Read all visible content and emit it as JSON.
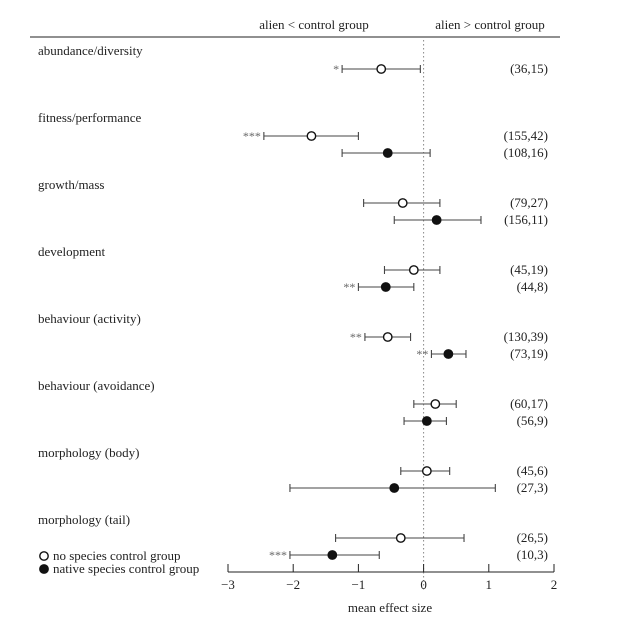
{
  "chart_data": {
    "type": "forest",
    "header_left": "alien < control group",
    "header_right": "alien > control group",
    "xlabel": "mean effect size",
    "xlim": [
      -3,
      2
    ],
    "xticks": [
      -3,
      -2,
      -1,
      0,
      1,
      2
    ],
    "xtick_labels": [
      "−3",
      "−2",
      "−1",
      "0",
      "1",
      "2"
    ],
    "reference_line": 0,
    "legend": [
      {
        "marker": "open",
        "label": "no species control group"
      },
      {
        "marker": "filled",
        "label": "native species control group"
      }
    ],
    "groups": [
      {
        "label": "abundance/diversity",
        "rows": [
          {
            "marker": "open",
            "mean": -0.65,
            "lo": -1.25,
            "hi": -0.05,
            "n": "(36,15)",
            "sig": "*"
          }
        ]
      },
      {
        "label": "fitness/performance",
        "rows": [
          {
            "marker": "open",
            "mean": -1.72,
            "lo": -2.45,
            "hi": -1.0,
            "n": "(155,42)",
            "sig": "***"
          },
          {
            "marker": "filled",
            "mean": -0.55,
            "lo": -1.25,
            "hi": 0.1,
            "n": "(108,16)",
            "sig": ""
          }
        ]
      },
      {
        "label": "growth/mass",
        "rows": [
          {
            "marker": "open",
            "mean": -0.32,
            "lo": -0.92,
            "hi": 0.25,
            "n": "(79,27)",
            "sig": ""
          },
          {
            "marker": "filled",
            "mean": 0.2,
            "lo": -0.45,
            "hi": 0.88,
            "n": "(156,11)",
            "sig": ""
          }
        ]
      },
      {
        "label": "development",
        "rows": [
          {
            "marker": "open",
            "mean": -0.15,
            "lo": -0.6,
            "hi": 0.25,
            "n": "(45,19)",
            "sig": ""
          },
          {
            "marker": "filled",
            "mean": -0.58,
            "lo": -1.0,
            "hi": -0.15,
            "n": "(44,8)",
            "sig": "**"
          }
        ]
      },
      {
        "label": "behaviour (activity)",
        "rows": [
          {
            "marker": "open",
            "mean": -0.55,
            "lo": -0.9,
            "hi": -0.2,
            "n": "(130,39)",
            "sig": "**"
          },
          {
            "marker": "filled",
            "mean": 0.38,
            "lo": 0.12,
            "hi": 0.65,
            "n": "(73,19)",
            "sig": "**"
          }
        ]
      },
      {
        "label": "behaviour (avoidance)",
        "rows": [
          {
            "marker": "open",
            "mean": 0.18,
            "lo": -0.15,
            "hi": 0.5,
            "n": "(60,17)",
            "sig": ""
          },
          {
            "marker": "filled",
            "mean": 0.05,
            "lo": -0.3,
            "hi": 0.35,
            "n": "(56,9)",
            "sig": ""
          }
        ]
      },
      {
        "label": "morphology (body)",
        "rows": [
          {
            "marker": "open",
            "mean": 0.05,
            "lo": -0.35,
            "hi": 0.4,
            "n": "(45,6)",
            "sig": ""
          },
          {
            "marker": "filled",
            "mean": -0.45,
            "lo": -2.05,
            "hi": 1.1,
            "n": "(27,3)",
            "sig": ""
          }
        ]
      },
      {
        "label": "morphology (tail)",
        "rows": [
          {
            "marker": "open",
            "mean": -0.35,
            "lo": -1.35,
            "hi": 0.62,
            "n": "(26,5)",
            "sig": ""
          },
          {
            "marker": "filled",
            "mean": -1.4,
            "lo": -2.05,
            "hi": -0.68,
            "n": "(10,3)",
            "sig": "***"
          }
        ]
      }
    ]
  }
}
